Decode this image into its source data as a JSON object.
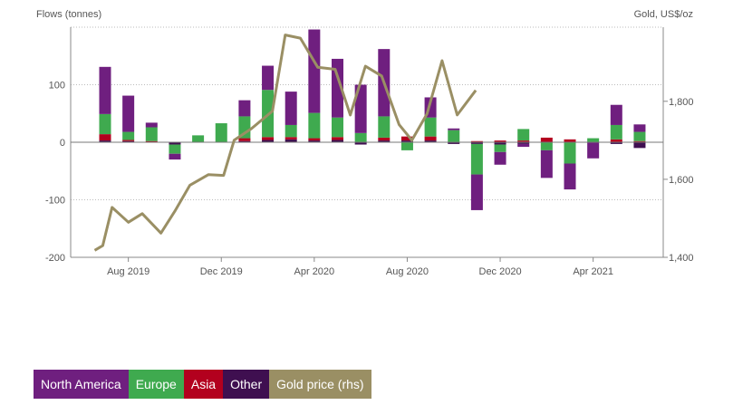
{
  "chart_data": {
    "type": "bar",
    "title": "",
    "left_axis_title": "Flows (tonnes)",
    "right_axis_title": "Gold, US$/oz",
    "stacked": true,
    "ylim_left": [
      -200,
      200
    ],
    "ylim_right": [
      1400,
      1990
    ],
    "left_ticks": [
      {
        "value": 100,
        "label": "100"
      },
      {
        "value": 0,
        "label": "0"
      },
      {
        "value": -100,
        "label": "-100"
      },
      {
        "value": -200,
        "label": "-200"
      }
    ],
    "right_ticks": [
      {
        "value": 1800,
        "label": "1,800"
      },
      {
        "value": 1600,
        "label": "1,600"
      },
      {
        "value": 1400,
        "label": "1,400"
      }
    ],
    "x_ticks": [
      {
        "index": 1,
        "label": "Aug 2019"
      },
      {
        "index": 5,
        "label": "Dec 2019"
      },
      {
        "index": 9,
        "label": "Apr 2020"
      },
      {
        "index": 13,
        "label": "Aug 2020"
      },
      {
        "index": 17,
        "label": "Dec 2020"
      },
      {
        "index": 21,
        "label": "Apr 2021"
      }
    ],
    "categories": [
      "Jul 2019",
      "Aug 2019",
      "Sep 2019",
      "Oct 2019",
      "Nov 2019",
      "Dec 2019",
      "Jan 2020",
      "Feb 2020",
      "Mar 2020",
      "Apr 2020",
      "May 2020",
      "Jun 2020",
      "Jul 2020",
      "Aug 2020",
      "Sep 2020",
      "Oct 2020",
      "Nov 2020",
      "Dec 2020",
      "Jan 2021",
      "Feb 2021",
      "Mar 2021",
      "Apr 2021",
      "May 2021",
      "Jun 2021"
    ],
    "series": [
      {
        "name": "North America",
        "color": "#6f1f7f",
        "values": [
          82,
          63,
          8,
          -10,
          0,
          0,
          28,
          42,
          58,
          145,
          102,
          84,
          117,
          0,
          35,
          3,
          -62,
          -22,
          -5,
          -48,
          -45,
          -28,
          35,
          13
        ]
      },
      {
        "name": "Europe",
        "color": "#3faa4f",
        "values": [
          35,
          14,
          24,
          -16,
          12,
          33,
          38,
          82,
          21,
          44,
          34,
          16,
          37,
          -14,
          33,
          21,
          -53,
          -13,
          20,
          -14,
          -37,
          7,
          25,
          16
        ]
      },
      {
        "name": "Asia",
        "color": "#b3001e",
        "values": [
          11,
          2,
          2,
          0,
          0,
          0,
          5,
          5,
          4,
          4,
          5,
          0,
          5,
          7,
          7,
          0,
          2,
          3,
          3,
          8,
          5,
          0,
          5,
          2
        ]
      },
      {
        "name": "Other",
        "color": "#3f0f50",
        "values": [
          3,
          2,
          0,
          -4,
          0,
          0,
          2,
          4,
          5,
          3,
          4,
          -4,
          3,
          3,
          3,
          -3,
          -3,
          -4,
          -3,
          0,
          0,
          0,
          -3,
          -10
        ]
      }
    ],
    "line": {
      "name": "Gold price (rhs)",
      "color": "#9a8f64",
      "axis": "right",
      "points": [
        {
          "i": -0.45,
          "v": 1418
        },
        {
          "i": -0.1,
          "v": 1430
        },
        {
          "i": 0.3,
          "v": 1528
        },
        {
          "i": 1.0,
          "v": 1490
        },
        {
          "i": 1.6,
          "v": 1512
        },
        {
          "i": 2.4,
          "v": 1462
        },
        {
          "i": 3.0,
          "v": 1518
        },
        {
          "i": 3.65,
          "v": 1585
        },
        {
          "i": 4.45,
          "v": 1612
        },
        {
          "i": 5.1,
          "v": 1610
        },
        {
          "i": 5.55,
          "v": 1700
        },
        {
          "i": 6.3,
          "v": 1730
        },
        {
          "i": 7.2,
          "v": 1775
        },
        {
          "i": 7.75,
          "v": 1970
        },
        {
          "i": 8.4,
          "v": 1962
        },
        {
          "i": 9.15,
          "v": 1887
        },
        {
          "i": 9.9,
          "v": 1882
        },
        {
          "i": 10.55,
          "v": 1765
        },
        {
          "i": 11.2,
          "v": 1890
        },
        {
          "i": 11.9,
          "v": 1865
        },
        {
          "i": 12.65,
          "v": 1740
        },
        {
          "i": 13.2,
          "v": 1700
        },
        {
          "i": 13.85,
          "v": 1768
        },
        {
          "i": 14.5,
          "v": 1904
        },
        {
          "i": 15.15,
          "v": 1765
        },
        {
          "i": 15.95,
          "v": 1828
        }
      ]
    },
    "grid": true,
    "legend_position": "bottom-left"
  }
}
